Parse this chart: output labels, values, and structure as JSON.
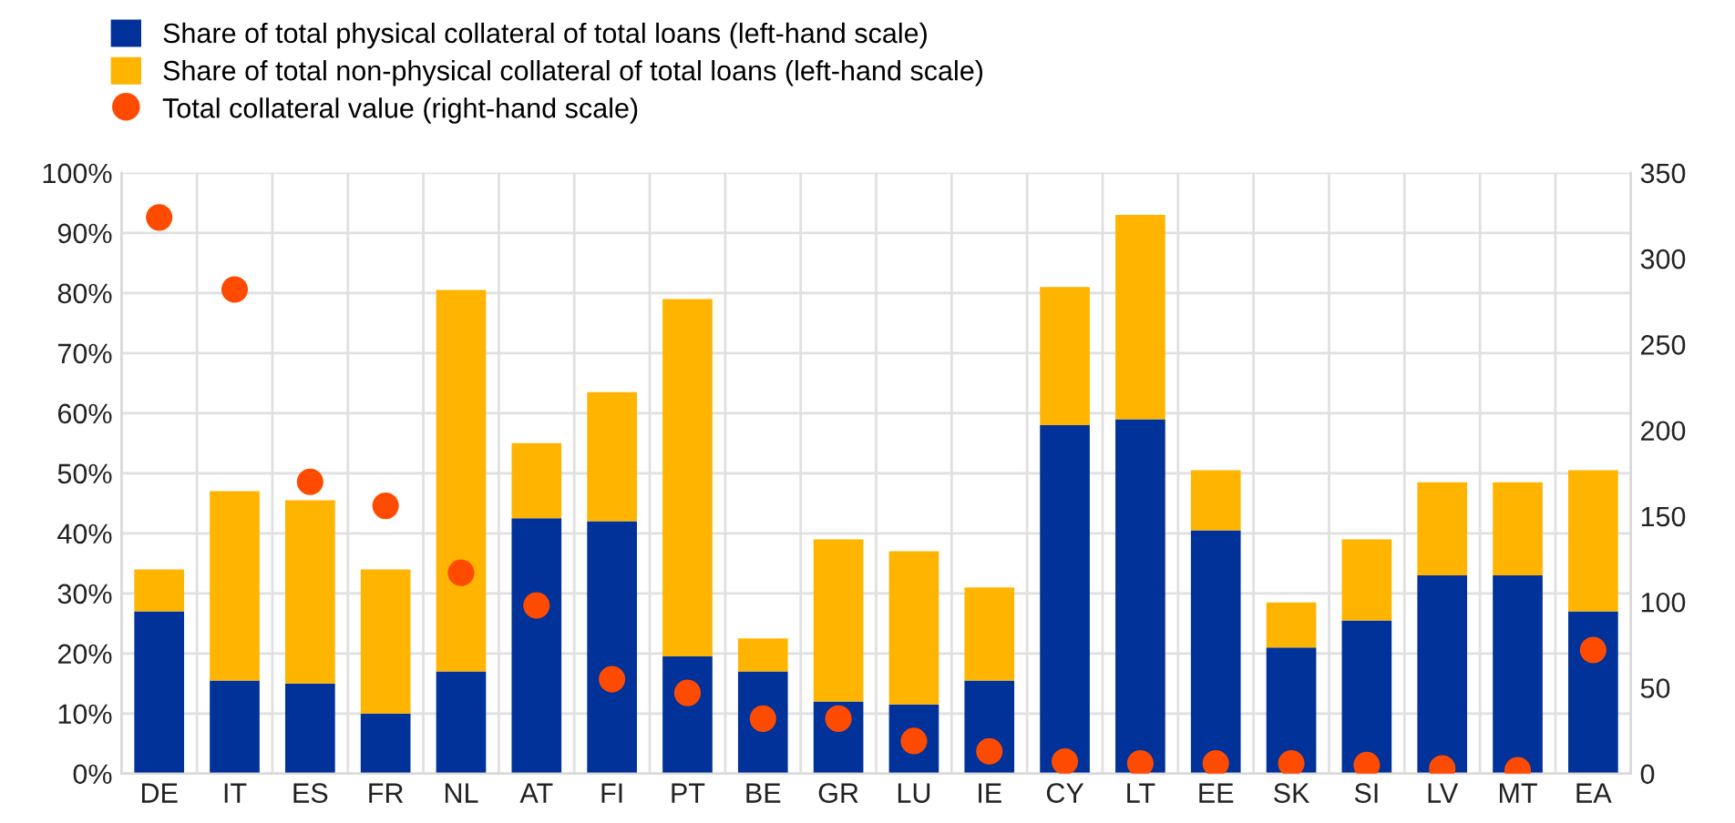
{
  "chart_data": {
    "type": "bar",
    "stacked": true,
    "categories": [
      "DE",
      "IT",
      "ES",
      "FR",
      "NL",
      "AT",
      "FI",
      "PT",
      "BE",
      "GR",
      "LU",
      "IE",
      "CY",
      "LT",
      "EE",
      "SK",
      "SI",
      "LV",
      "MT",
      "EA"
    ],
    "series": [
      {
        "name": "Share of total physical collateral of total loans (left-hand scale)",
        "color": "#003299",
        "values": [
          27,
          15.5,
          15,
          10,
          17,
          42.5,
          42,
          19.5,
          17,
          12,
          11.5,
          15.5,
          58,
          59,
          40.5,
          21,
          25.5,
          33,
          33,
          27
        ]
      },
      {
        "name": "Share of total non-physical collateral of total loans (left-hand scale)",
        "color": "#ffb400",
        "values": [
          7,
          31.5,
          30.5,
          24,
          63.5,
          12.5,
          21.5,
          59.5,
          5.5,
          27,
          25.5,
          15.5,
          23,
          34,
          10,
          7.5,
          13.5,
          15.5,
          15.5,
          23.5
        ]
      },
      {
        "name": "Total collateral value (right-hand scale)",
        "type": "scatter",
        "axis": "y2",
        "color": "#ff4b00",
        "values": [
          324,
          282,
          170,
          156,
          117,
          98,
          55,
          47,
          32,
          32,
          19,
          13,
          7,
          6,
          6,
          6,
          5,
          3,
          2,
          72
        ]
      }
    ],
    "ylim": [
      0,
      100
    ],
    "yticks": [
      {
        "value": 0,
        "label": "0%"
      },
      {
        "value": 10,
        "label": "10%"
      },
      {
        "value": 20,
        "label": "20%"
      },
      {
        "value": 30,
        "label": "30%"
      },
      {
        "value": 40,
        "label": "40%"
      },
      {
        "value": 50,
        "label": "50%"
      },
      {
        "value": 60,
        "label": "60%"
      },
      {
        "value": 70,
        "label": "70%"
      },
      {
        "value": 80,
        "label": "80%"
      },
      {
        "value": 90,
        "label": "90%"
      },
      {
        "value": 100,
        "label": "100%"
      }
    ],
    "y2lim": [
      0,
      350
    ],
    "y2ticks": [
      0,
      50,
      100,
      150,
      200,
      250,
      300,
      350
    ],
    "grid": true,
    "legend": "top left",
    "marker": "circle"
  }
}
